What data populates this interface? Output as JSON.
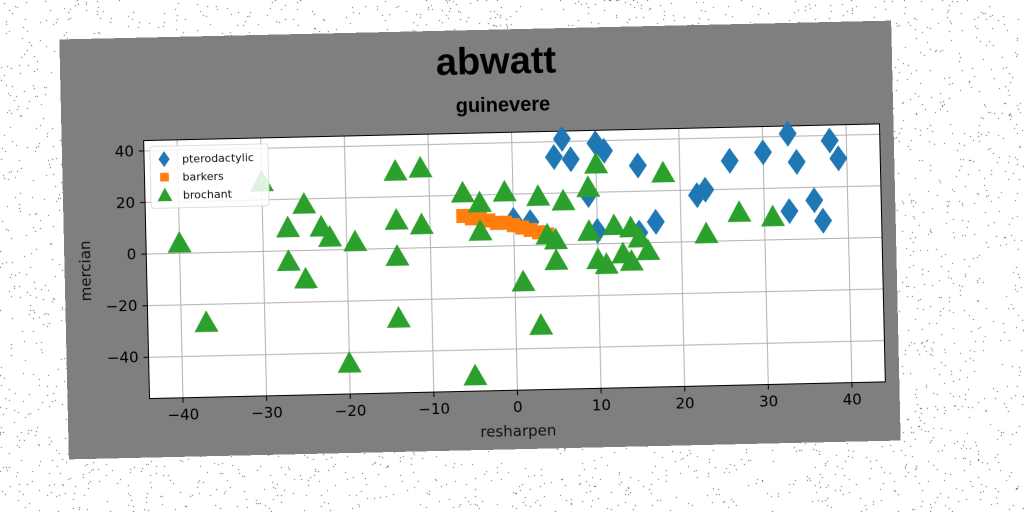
{
  "colors": {
    "card": "#7f7f7f",
    "plot_bg": "#ffffff",
    "grid": "#b0b0b0",
    "pterodactylic": "#1f77b4",
    "barkers": "#ff7f0e",
    "brochant": "#2ca02c"
  },
  "chart_data": {
    "type": "scatter",
    "title": "abwatt",
    "subtitle": "guinevere",
    "xlabel": "resharpen",
    "ylabel": "mercian",
    "xlim": [
      -44,
      44
    ],
    "ylim": [
      -56,
      44
    ],
    "xticks": [
      -40,
      -30,
      -20,
      -10,
      0,
      10,
      20,
      30,
      40
    ],
    "yticks": [
      -40,
      -20,
      0,
      20,
      40
    ],
    "grid": true,
    "legend_position": "top-left",
    "series": [
      {
        "name": "pterodactylic",
        "marker": "diamond",
        "color": "#1f77b4",
        "points": [
          [
            6,
            41
          ],
          [
            10,
            39
          ],
          [
            11,
            36
          ],
          [
            5,
            34
          ],
          [
            7,
            33
          ],
          [
            15,
            30
          ],
          [
            26,
            31
          ],
          [
            30,
            34
          ],
          [
            33,
            41
          ],
          [
            34,
            30
          ],
          [
            38,
            38
          ],
          [
            39,
            31
          ],
          [
            9,
            19
          ],
          [
            22,
            18
          ],
          [
            23,
            20
          ],
          [
            36,
            15
          ],
          [
            33,
            11
          ],
          [
            37,
            7
          ],
          [
            17,
            8
          ],
          [
            15,
            4
          ],
          [
            10,
            5
          ],
          [
            0,
            10
          ],
          [
            2,
            9
          ]
        ]
      },
      {
        "name": "barkers",
        "marker": "square",
        "color": "#ff7f0e",
        "points": [
          [
            -6,
            12
          ],
          [
            -5,
            11
          ],
          [
            -4,
            11
          ],
          [
            -3,
            10
          ],
          [
            -2,
            9
          ],
          [
            -1,
            9
          ],
          [
            0,
            8
          ],
          [
            1,
            7
          ],
          [
            2,
            6
          ],
          [
            3,
            5
          ],
          [
            4,
            4
          ],
          [
            4,
            4
          ]
        ]
      },
      {
        "name": "brochant",
        "marker": "triangle",
        "color": "#2ca02c",
        "points": [
          [
            -40,
            4
          ],
          [
            -37,
            -27
          ],
          [
            -30,
            27
          ],
          [
            -27,
            9
          ],
          [
            -27,
            -4
          ],
          [
            -25,
            18
          ],
          [
            -25,
            -11
          ],
          [
            -23,
            9
          ],
          [
            -22,
            5
          ],
          [
            -19,
            3
          ],
          [
            -20,
            -44
          ],
          [
            -14,
            30
          ],
          [
            -14,
            11
          ],
          [
            -14,
            -3
          ],
          [
            -14,
            -27
          ],
          [
            -11,
            31
          ],
          [
            -11,
            9
          ],
          [
            -6,
            21
          ],
          [
            -4,
            17
          ],
          [
            -4,
            6
          ],
          [
            -5,
            -50
          ],
          [
            -1,
            21
          ],
          [
            1,
            -14
          ],
          [
            3,
            19
          ],
          [
            3,
            -31
          ],
          [
            4,
            4
          ],
          [
            5,
            2
          ],
          [
            5,
            -6
          ],
          [
            6,
            17
          ],
          [
            9,
            22
          ],
          [
            9,
            5
          ],
          [
            10,
            31
          ],
          [
            10,
            -6
          ],
          [
            11,
            -8
          ],
          [
            12,
            7
          ],
          [
            13,
            -4
          ],
          [
            14,
            6
          ],
          [
            14,
            -7
          ],
          [
            15,
            2
          ],
          [
            16,
            -3
          ],
          [
            18,
            27
          ],
          [
            23,
            3
          ],
          [
            27,
            11
          ],
          [
            31,
            9
          ]
        ]
      }
    ]
  }
}
